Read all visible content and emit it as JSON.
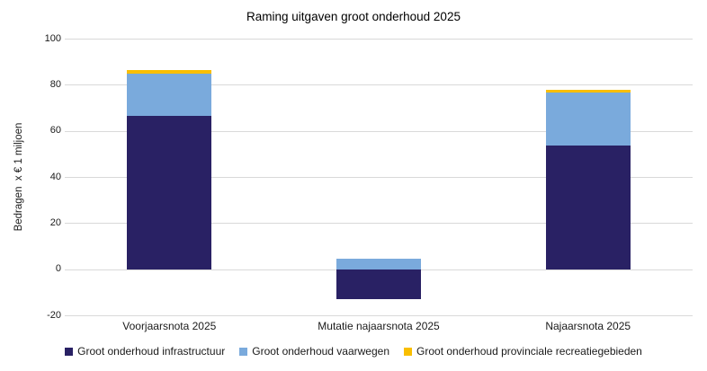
{
  "chart_data": {
    "type": "bar",
    "stacked": true,
    "title": "Raming uitgaven groot onderhoud 2025",
    "ylabel": "Bedragen  x € 1 miljoen",
    "xlabel": "",
    "categories": [
      "Voorjaarsnota 2025",
      "Mutatie najaarsnota 2025",
      "Najaarsnota 2025"
    ],
    "series": [
      {
        "name": "Groot onderhoud infrastructuur",
        "color": "#292164",
        "values": [
          66.5,
          -13,
          53.5
        ]
      },
      {
        "name": "Groot onderhoud vaarwegen",
        "color": "#7AAADC",
        "values": [
          18.5,
          4.5,
          23
        ]
      },
      {
        "name": "Groot onderhoud provinciale recreatiegebieden",
        "color": "#F9BE00",
        "values": [
          1.5,
          0,
          1.5
        ]
      }
    ],
    "totals": [
      86.5,
      -8.5,
      78
    ],
    "ylim": [
      -20,
      100
    ],
    "yticks": [
      100,
      80,
      60,
      40,
      20,
      0,
      -20
    ],
    "grid": true,
    "legend_position": "bottom",
    "colors": {
      "gridline": "#D9D9D9",
      "text": "#000000",
      "background": "#FFFFFF"
    }
  }
}
